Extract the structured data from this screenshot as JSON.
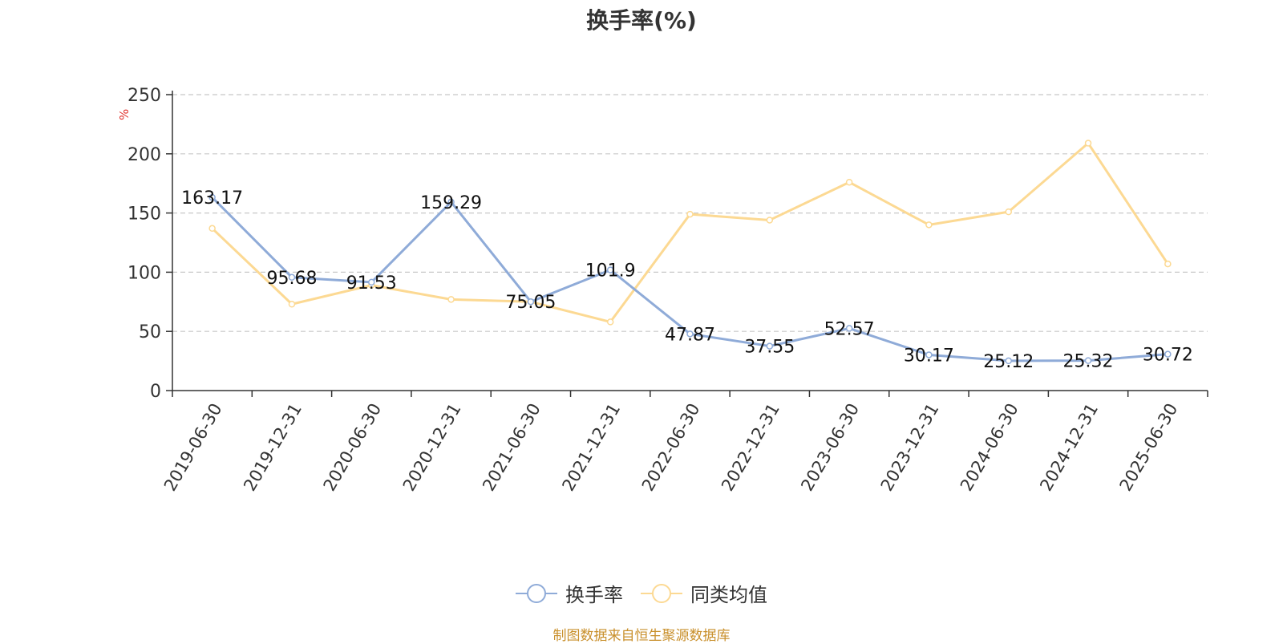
{
  "chart_data": {
    "type": "line",
    "title": "换手率(%)",
    "ylabel": "%",
    "ylim": [
      0,
      250
    ],
    "yticks": [
      0,
      50,
      100,
      150,
      200,
      250
    ],
    "grid": true,
    "legend_position": "bottom",
    "categories": [
      "2019-06-30",
      "2019-12-31",
      "2020-06-30",
      "2020-12-31",
      "2021-06-30",
      "2021-12-31",
      "2022-06-30",
      "2022-12-31",
      "2023-06-30",
      "2023-12-31",
      "2024-06-30",
      "2024-12-31",
      "2025-06-30"
    ],
    "series": [
      {
        "name": "换手率",
        "color": "#8fabd8",
        "values": [
          163.17,
          95.68,
          91.53,
          159.29,
          75.05,
          101.9,
          47.87,
          37.55,
          52.57,
          30.17,
          25.12,
          25.32,
          30.72
        ],
        "data_labels": [
          "163.17",
          "95.68",
          "91.53",
          "159.29",
          "75.05",
          "101.9",
          "47.87",
          "37.55",
          "52.57",
          "30.17",
          "25.12",
          "25.32",
          "30.72"
        ]
      },
      {
        "name": "同类均值",
        "color": "#fcd993",
        "values": [
          137,
          73,
          89,
          77,
          75,
          58,
          149,
          144,
          176,
          140,
          151,
          209,
          107
        ]
      }
    ]
  },
  "source_note": "制图数据来自恒生聚源数据库"
}
